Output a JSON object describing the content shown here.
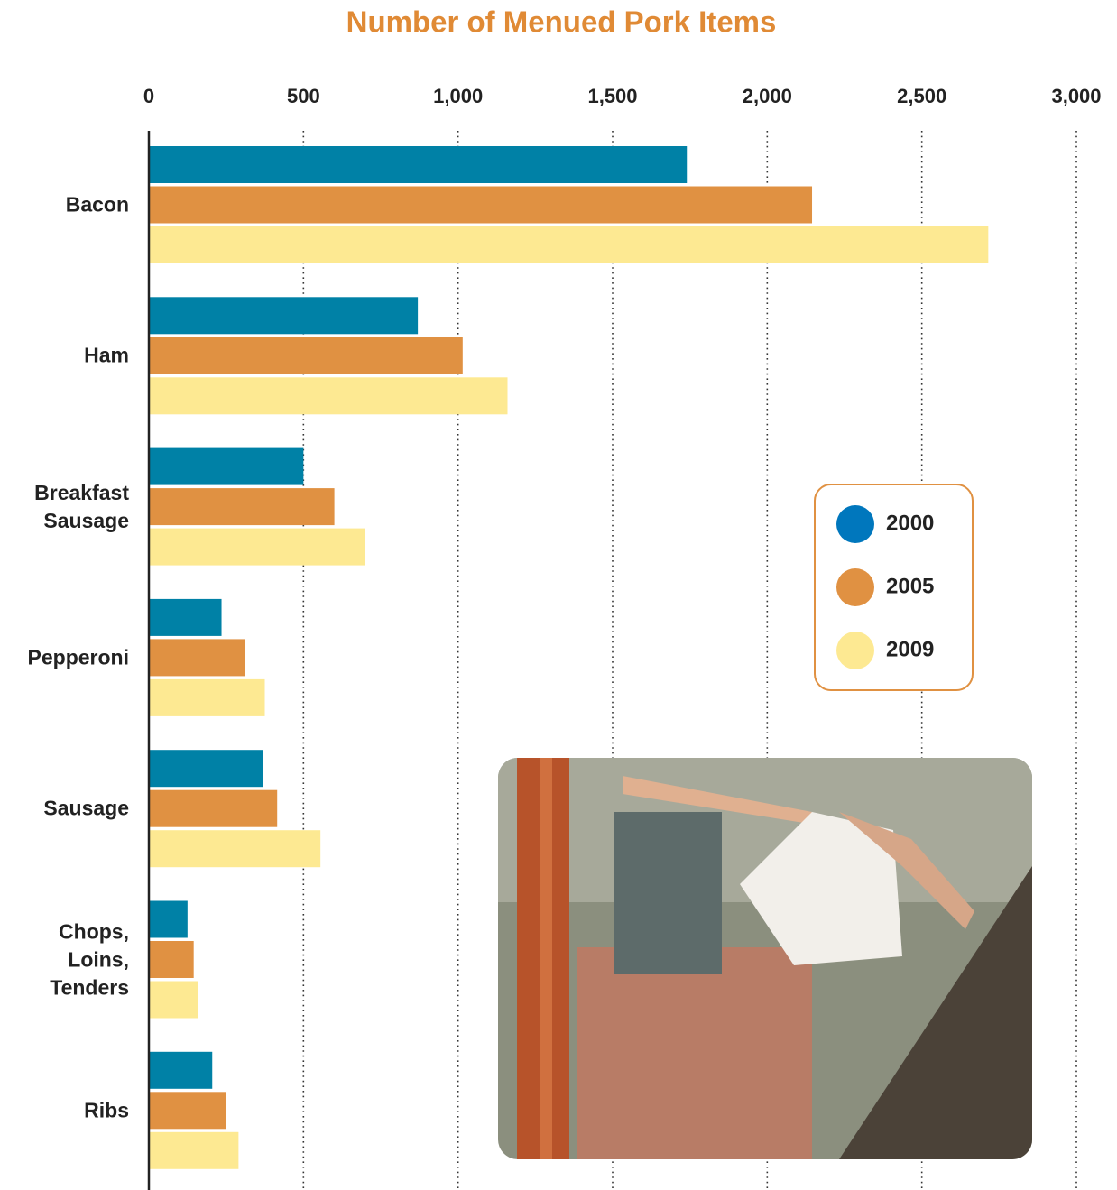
{
  "chart_data": {
    "type": "bar",
    "orientation": "horizontal",
    "title": "Number of Menued Pork Items",
    "categories": [
      "Bacon",
      "Ham",
      "Breakfast Sausage",
      "Pepperoni",
      "Sausage",
      "Chops, Loins, Tenders",
      "Ribs"
    ],
    "series": [
      {
        "name": "2000",
        "color": "#0081a6",
        "values": [
          1740,
          870,
          500,
          235,
          370,
          125,
          205
        ]
      },
      {
        "name": "2005",
        "color": "#e09142",
        "values": [
          2145,
          1015,
          600,
          310,
          415,
          145,
          250
        ]
      },
      {
        "name": "2009",
        "color": "#fde992",
        "values": [
          2715,
          1160,
          700,
          375,
          555,
          160,
          290
        ]
      }
    ],
    "xlim": [
      0,
      3000
    ],
    "xticks": [
      0,
      500,
      {
        "value": 1000,
        "label": "1,000"
      },
      {
        "value": 1500,
        "label": "1,500"
      },
      {
        "value": 2000,
        "label": "2,000"
      },
      {
        "value": 2500,
        "label": "2,500"
      },
      {
        "value": 3000,
        "label": "3,000"
      }
    ],
    "grid": true,
    "legend": "right"
  }
}
